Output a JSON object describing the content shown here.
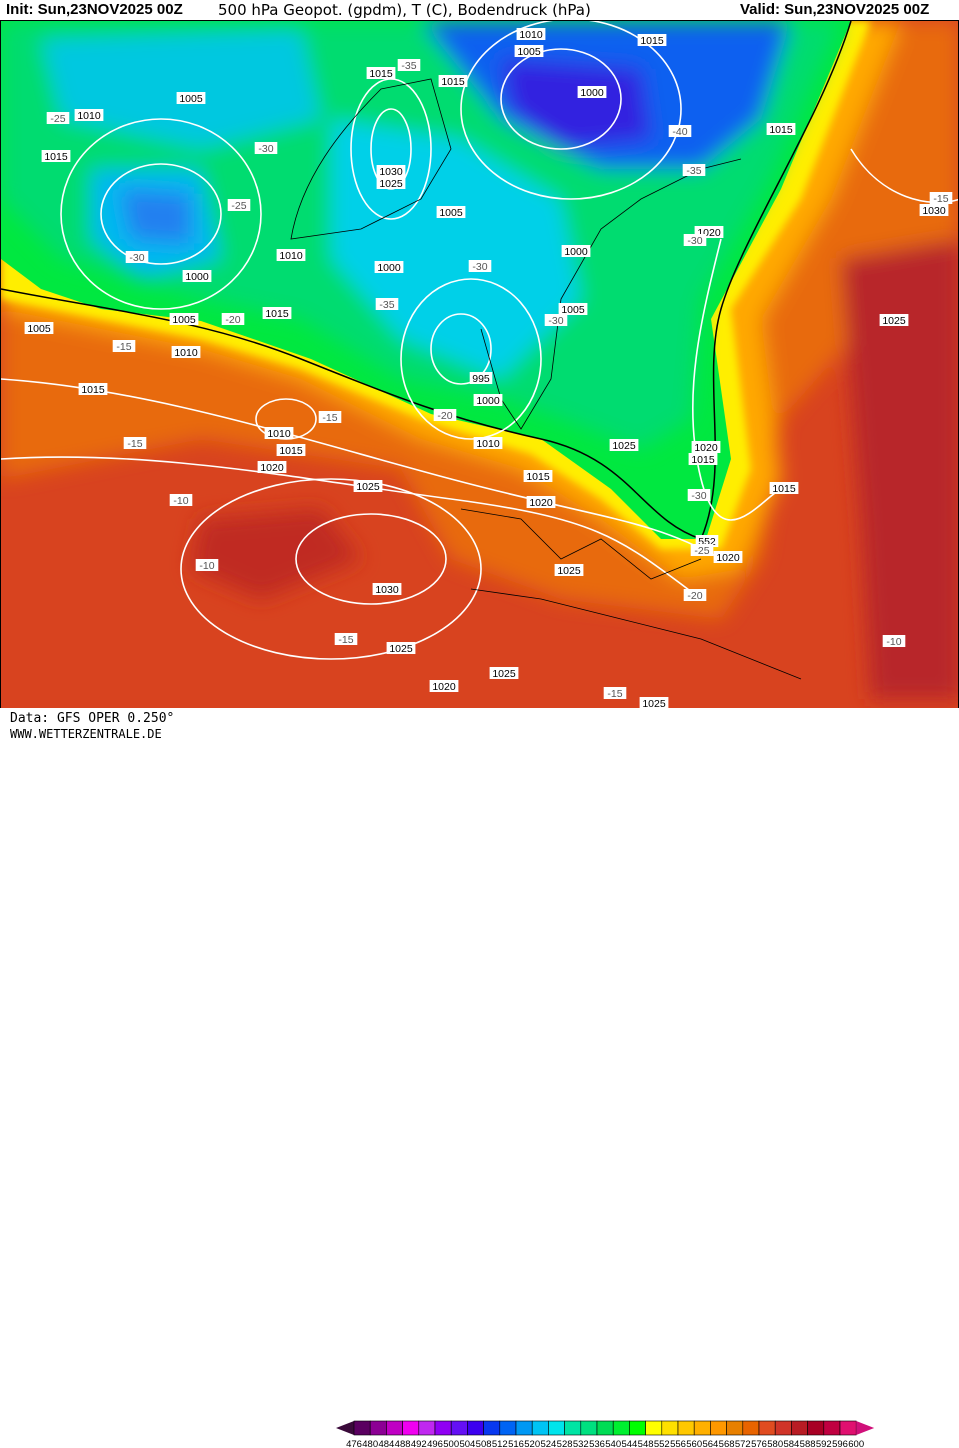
{
  "header": {
    "init": "Init: Sun,23NOV2025 00Z",
    "title": "500 hPa Geopot. (gpdm), T (C), Bodendruck (hPa)",
    "valid": "Valid: Sun,23NOV2025 00Z"
  },
  "footer": {
    "data_source": "Data: GFS OPER 0.250°",
    "website": "WWW.WETTERZENTRALE.DE"
  },
  "legend": {
    "ticks": [
      "476",
      "480",
      "484",
      "488",
      "492",
      "496",
      "500",
      "504",
      "508",
      "512",
      "516",
      "520",
      "524",
      "528",
      "532",
      "536",
      "540",
      "544",
      "548",
      "552",
      "556",
      "560",
      "564",
      "568",
      "572",
      "576",
      "580",
      "584",
      "588",
      "592",
      "596",
      "600"
    ],
    "colors": [
      "#5a0060",
      "#8c0094",
      "#c000c4",
      "#f000f0",
      "#c028f0",
      "#9000f4",
      "#6410f4",
      "#3c00f0",
      "#0838f0",
      "#0064f4",
      "#0098f4",
      "#00c4f4",
      "#00e4ec",
      "#00e4a4",
      "#00e080",
      "#00dc54",
      "#00f030",
      "#00ff00",
      "#ffff00",
      "#ffe000",
      "#ffc800",
      "#ffb000",
      "#ff9800",
      "#e88000",
      "#e86400",
      "#e04c20",
      "#d03428",
      "#b81c24",
      "#a80024",
      "#c00040",
      "#e01070"
    ],
    "under_color": "#3a0a3a",
    "over_color": "#d0107a"
  },
  "map": {
    "isobar_labels": [
      "1010",
      "1005",
      "1015",
      "1015",
      "1015",
      "1010",
      "1005",
      "1015",
      "1000",
      "1015",
      "1030",
      "1025",
      "1010",
      "1005",
      "1000",
      "1000",
      "1020",
      "1030",
      "1000",
      "1005",
      "1005",
      "1015",
      "1010",
      "1005",
      "995",
      "1000",
      "1025",
      "1015",
      "1010",
      "1015",
      "1010",
      "1025",
      "1020",
      "1015",
      "1020",
      "1015",
      "1025",
      "1020",
      "1015",
      "1020",
      "1025",
      "1030",
      "1025",
      "1025",
      "1020",
      "1025",
      "552"
    ],
    "temperature_labels": [
      "-25",
      "-35",
      "-30",
      "-25",
      "-30",
      "-40",
      "-35",
      "-30",
      "-30",
      "-35",
      "-30",
      "-20",
      "-15",
      "-20",
      "-15",
      "-15",
      "-10",
      "-10",
      "-30",
      "-25",
      "-20",
      "-15",
      "-15",
      "-10",
      "-15"
    ]
  }
}
